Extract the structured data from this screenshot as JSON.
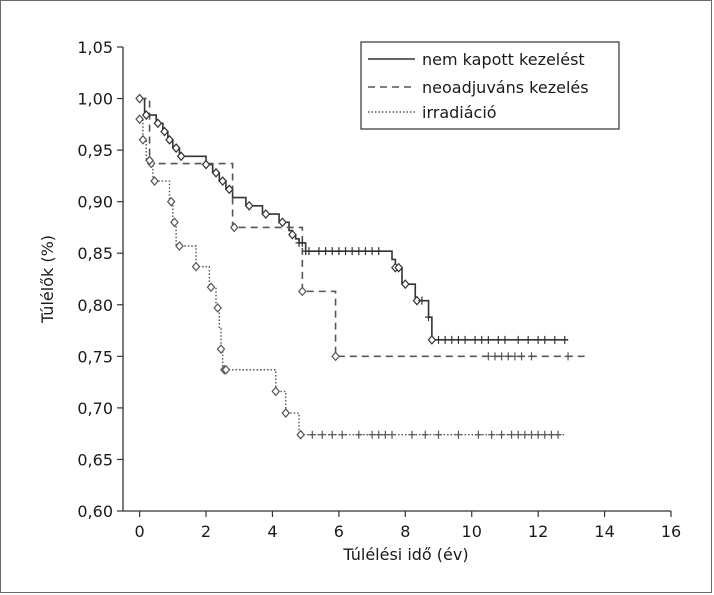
{
  "chart_data": {
    "type": "line",
    "title": "",
    "xlabel": "Túlélési idő (év)",
    "ylabel": "Túlélők (%)",
    "xlim": [
      -0.5,
      16
    ],
    "ylim": [
      0.6,
      1.05
    ],
    "x_ticks": [
      0,
      2,
      4,
      6,
      8,
      10,
      12,
      14,
      16
    ],
    "y_ticks": [
      0.6,
      0.65,
      0.7,
      0.75,
      0.8,
      0.85,
      0.9,
      0.95,
      1.0,
      1.05
    ],
    "x_tick_labels": [
      "0",
      "2",
      "4",
      "6",
      "8",
      "10",
      "12",
      "14",
      "16"
    ],
    "y_tick_labels": [
      "0,60",
      "0,65",
      "0,70",
      "0,75",
      "0,80",
      "0,85",
      "0,90",
      "0,95",
      "1,00",
      "1,05"
    ],
    "grid": false,
    "legend_position": "top-right",
    "series": [
      {
        "name": "nem kapott kezelést",
        "style": "solid",
        "color": "#333333",
        "x": [
          0,
          0.15,
          0.5,
          0.7,
          0.85,
          1.0,
          1.2,
          2.0,
          2.2,
          2.4,
          2.6,
          2.8,
          3.2,
          3.7,
          4.2,
          4.5,
          4.6,
          4.7,
          4.8,
          5.0,
          7.6,
          7.7,
          7.9,
          8.3,
          8.7,
          8.8
        ],
        "y": [
          1.0,
          0.984,
          0.976,
          0.968,
          0.96,
          0.952,
          0.944,
          0.936,
          0.928,
          0.92,
          0.912,
          0.904,
          0.896,
          0.888,
          0.88,
          0.872,
          0.868,
          0.864,
          0.86,
          0.852,
          0.844,
          0.836,
          0.82,
          0.804,
          0.788,
          0.766
        ],
        "end_x": 12.9,
        "marker_x": [
          0,
          0.2,
          0.55,
          0.75,
          0.9,
          1.1,
          1.25,
          2.0,
          2.3,
          2.5,
          2.7,
          3.3,
          3.8,
          4.3,
          4.6,
          7.7,
          7.8,
          8.0,
          8.35,
          8.8
        ],
        "censor_x": [
          4.8,
          4.9,
          5.0,
          5.1,
          5.4,
          5.6,
          5.8,
          6.0,
          6.2,
          6.4,
          6.6,
          6.8,
          7.0,
          7.2,
          8.5,
          8.7,
          9.0,
          9.2,
          9.4,
          9.6,
          9.8,
          10.1,
          10.3,
          10.5,
          10.8,
          11.0,
          11.4,
          11.7,
          12.0,
          12.2,
          12.5,
          12.8
        ]
      },
      {
        "name": "neoadjuváns kezelés",
        "style": "dashed",
        "color": "#555555",
        "x": [
          0,
          0.3,
          2.8,
          4.9,
          5.9
        ],
        "y": [
          1.0,
          0.937,
          0.875,
          0.813,
          0.75
        ],
        "end_x": 13.4,
        "marker_x": [
          0,
          0.35,
          2.85,
          4.9,
          5.9
        ],
        "censor_x": [
          10.5,
          10.7,
          10.9,
          11.1,
          11.3,
          11.5,
          11.8,
          12.9
        ]
      },
      {
        "name": "irradiáció",
        "style": "dotted",
        "color": "#555555",
        "x": [
          0,
          0.1,
          0.2,
          0.4,
          0.9,
          1.0,
          1.1,
          1.7,
          2.1,
          2.3,
          2.4,
          2.45,
          2.5,
          2.55,
          4.1,
          4.4,
          4.8
        ],
        "y": [
          0.98,
          0.96,
          0.94,
          0.92,
          0.9,
          0.88,
          0.857,
          0.837,
          0.817,
          0.797,
          0.777,
          0.757,
          0.737,
          0.737,
          0.716,
          0.695,
          0.674
        ],
        "end_x": 12.8,
        "marker_x": [
          0,
          0.1,
          0.3,
          0.45,
          0.95,
          1.05,
          1.2,
          1.7,
          2.15,
          2.35,
          2.45,
          2.55,
          2.6,
          4.1,
          4.4,
          4.85
        ],
        "censor_x": [
          5.2,
          5.5,
          5.8,
          6.1,
          6.6,
          7.0,
          7.2,
          7.4,
          7.6,
          8.2,
          8.6,
          9.0,
          9.6,
          10.2,
          10.6,
          10.9,
          11.2,
          11.4,
          11.6,
          11.8,
          12.0,
          12.2,
          12.4,
          12.6
        ]
      }
    ]
  }
}
